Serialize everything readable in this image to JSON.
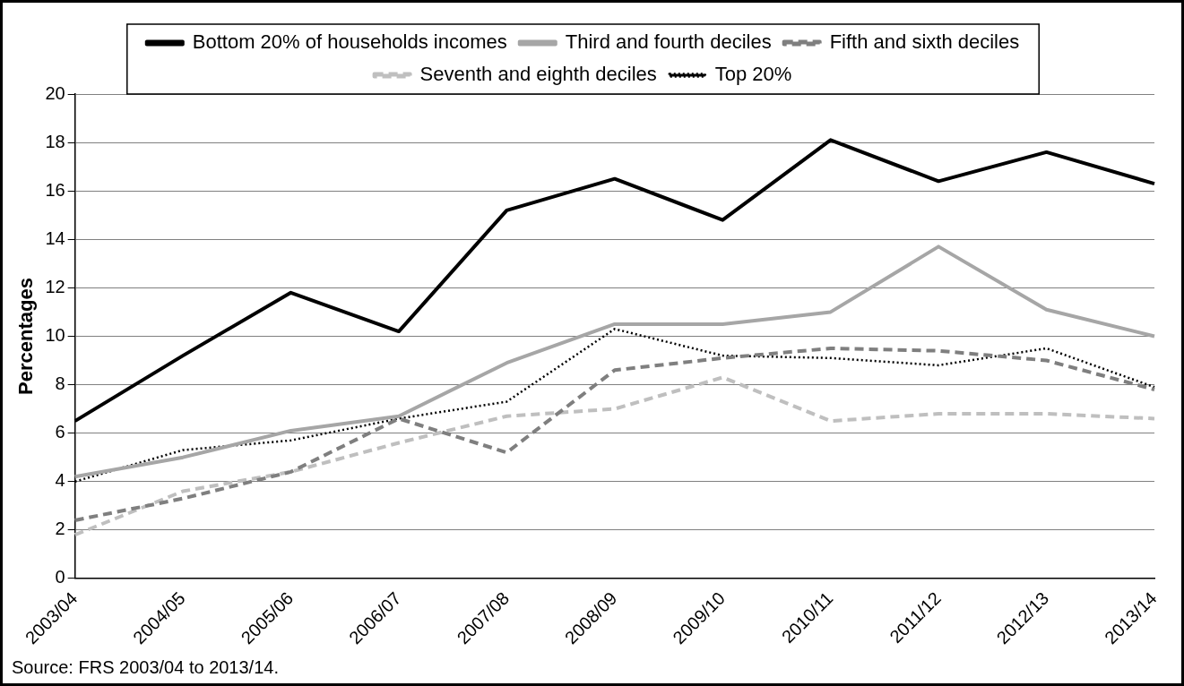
{
  "chart_data": {
    "type": "line",
    "ylabel": "Percentages",
    "categories": [
      "2003/04",
      "2004/05",
      "2005/06",
      "2006/07",
      "2007/08",
      "2008/09",
      "2009/10",
      "2010/11",
      "2011/12",
      "2012/13",
      "2013/14"
    ],
    "ylim": [
      0,
      20
    ],
    "yticks": [
      0,
      2,
      4,
      6,
      8,
      10,
      12,
      14,
      16,
      18,
      20
    ],
    "grid": "y",
    "legend": "top",
    "marker": "none",
    "series": [
      {
        "name": "Bottom 20% of households incomes",
        "color": "#000000",
        "line_style": "solid",
        "values": [
          6.5,
          9.2,
          11.8,
          10.2,
          15.2,
          16.5,
          14.8,
          18.1,
          16.4,
          17.6,
          16.3
        ]
      },
      {
        "name": "Third and fourth deciles",
        "color": "#a6a6a6",
        "line_style": "solid",
        "values": [
          4.2,
          5.0,
          6.1,
          6.7,
          8.9,
          10.5,
          10.5,
          11.0,
          13.7,
          11.1,
          10.0
        ]
      },
      {
        "name": "Fifth and sixth deciles",
        "color": "#7f7f7f",
        "line_style": "dashed",
        "values": [
          2.4,
          3.3,
          4.4,
          6.6,
          5.2,
          8.6,
          9.1,
          9.5,
          9.4,
          9.0,
          7.8
        ]
      },
      {
        "name": "Seventh and eighth deciles",
        "color": "#bfbfbf",
        "line_style": "dashed",
        "values": [
          1.8,
          3.6,
          4.4,
          5.6,
          6.7,
          7.0,
          8.3,
          6.5,
          6.8,
          6.8,
          6.6
        ]
      },
      {
        "name": "Top 20%",
        "color": "#000000",
        "line_style": "dotted",
        "values": [
          4.0,
          5.3,
          5.7,
          6.6,
          7.3,
          10.3,
          9.2,
          9.1,
          8.8,
          9.5,
          7.9
        ]
      }
    ],
    "annotations": [
      "Source: FRS 2003/04 to 2013/14."
    ]
  }
}
